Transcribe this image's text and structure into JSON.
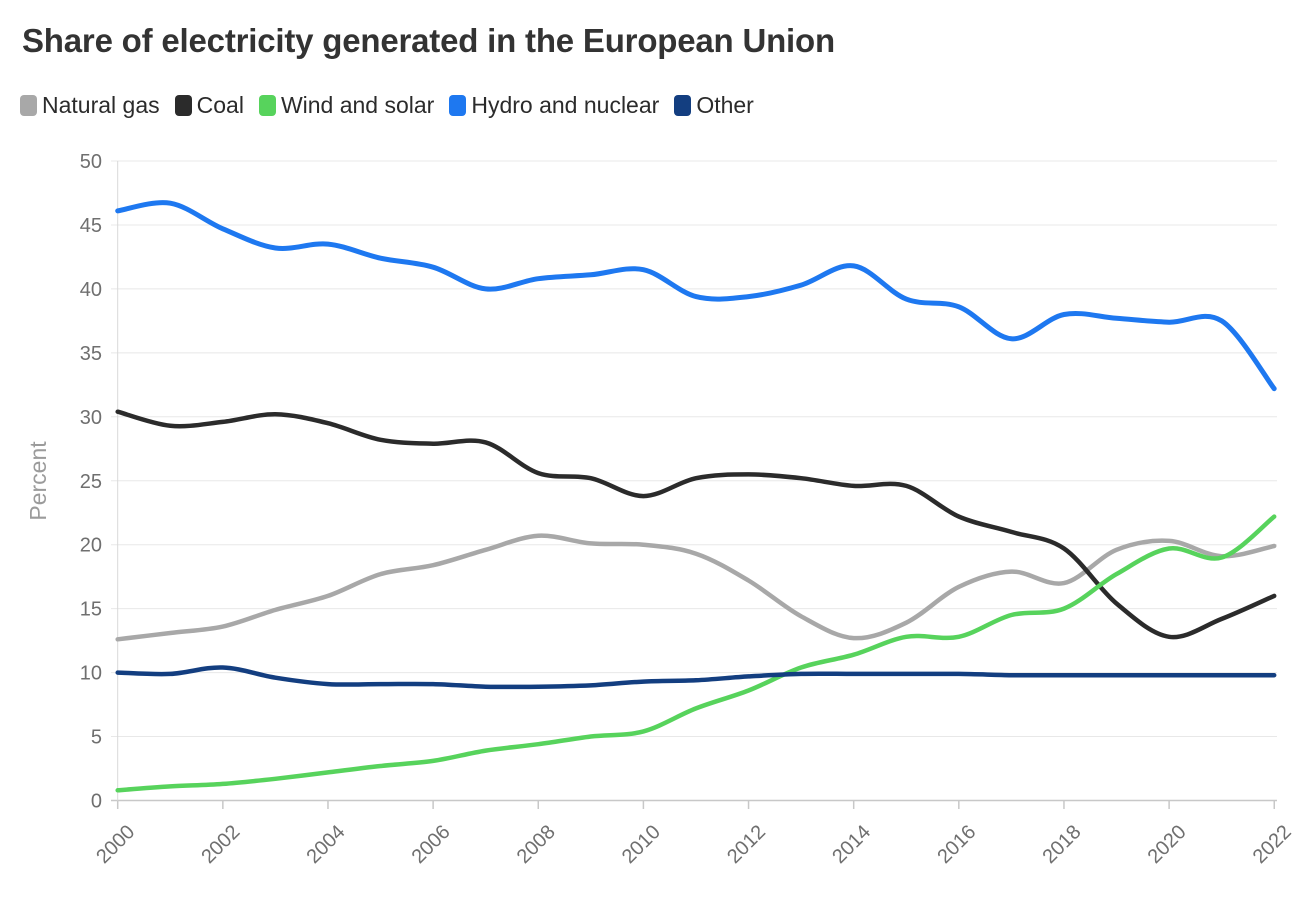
{
  "title": "Share of electricity generated in the European Union",
  "chart_data": {
    "type": "line",
    "title": "Share of electricity generated in the European Union",
    "xlabel": "",
    "ylabel": "Percent",
    "ylim": [
      0,
      50
    ],
    "grid": "horizontal",
    "legend_position": "top",
    "x": [
      2000,
      2001,
      2002,
      2003,
      2004,
      2005,
      2006,
      2007,
      2008,
      2009,
      2010,
      2011,
      2012,
      2013,
      2014,
      2015,
      2016,
      2017,
      2018,
      2019,
      2020,
      2021,
      2022
    ],
    "x_ticks": [
      2000,
      2002,
      2004,
      2006,
      2008,
      2010,
      2012,
      2014,
      2016,
      2018,
      2020,
      2022
    ],
    "y_ticks": [
      0,
      5,
      10,
      15,
      20,
      25,
      30,
      35,
      40,
      45,
      50
    ],
    "series": [
      {
        "name": "Natural gas",
        "color": "#a8a8a8",
        "values": [
          12.6,
          13.1,
          13.6,
          14.9,
          16.0,
          17.7,
          18.4,
          19.6,
          20.7,
          20.1,
          20.0,
          19.3,
          17.2,
          14.4,
          12.7,
          13.9,
          16.7,
          17.9,
          17.0,
          19.6,
          20.3,
          19.1,
          19.9
        ]
      },
      {
        "name": "Coal",
        "color": "#2b2b2b",
        "values": [
          30.4,
          29.3,
          29.6,
          30.2,
          29.5,
          28.2,
          27.9,
          28.0,
          25.6,
          25.2,
          23.8,
          25.2,
          25.5,
          25.2,
          24.6,
          24.6,
          22.2,
          21.0,
          19.7,
          15.4,
          12.8,
          14.2,
          16.0
        ]
      },
      {
        "name": "Wind and solar",
        "color": "#57d35c",
        "values": [
          0.8,
          1.1,
          1.3,
          1.7,
          2.2,
          2.7,
          3.1,
          3.9,
          4.4,
          5.0,
          5.4,
          7.2,
          8.6,
          10.4,
          11.4,
          12.8,
          12.8,
          14.5,
          15.0,
          17.7,
          19.7,
          19.0,
          22.2
        ]
      },
      {
        "name": "Hydro and nuclear",
        "color": "#1e78f0",
        "values": [
          46.1,
          46.7,
          44.7,
          43.2,
          43.5,
          42.4,
          41.7,
          40.0,
          40.8,
          41.1,
          41.5,
          39.4,
          39.4,
          40.3,
          41.8,
          39.2,
          38.6,
          36.1,
          38.0,
          37.7,
          37.4,
          37.5,
          32.2
        ]
      },
      {
        "name": "Other",
        "color": "#133e80",
        "values": [
          10.0,
          9.9,
          10.4,
          9.6,
          9.1,
          9.1,
          9.1,
          8.9,
          8.9,
          9.0,
          9.3,
          9.4,
          9.7,
          9.9,
          9.9,
          9.9,
          9.9,
          9.8,
          9.8,
          9.8,
          9.8,
          9.8,
          9.8
        ]
      }
    ],
    "style": {
      "grid_color": "#e8e8e8",
      "axis_color": "#c8c8c8",
      "tick_label_color": "#6f6f6f",
      "axis_title_color": "#9b9b9b",
      "title_color": "#333333",
      "legend_text_color": "#2b2b2b",
      "background": "#ffffff"
    }
  }
}
